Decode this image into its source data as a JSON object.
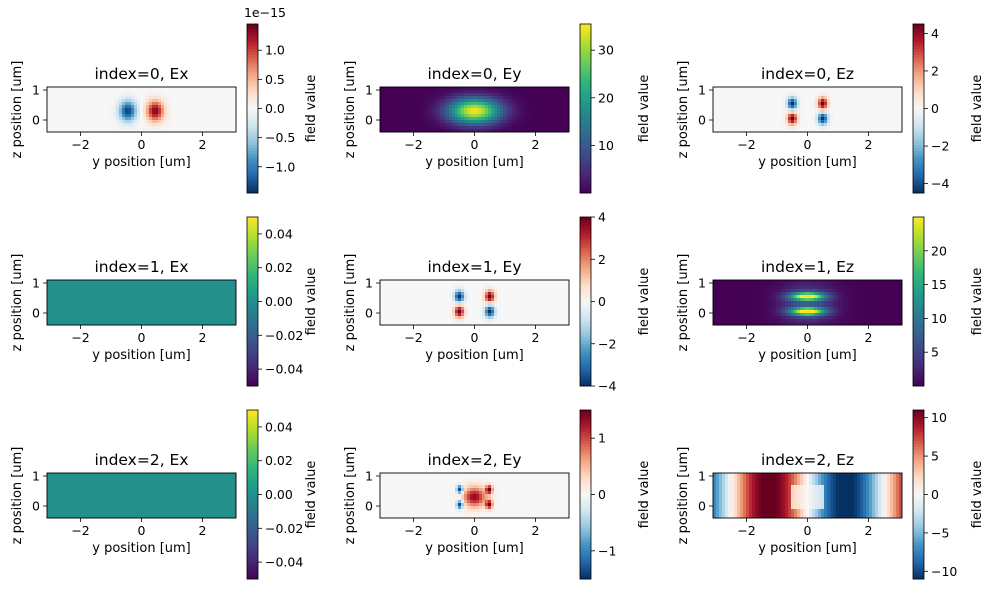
{
  "chart_data": [
    {
      "type": "heatmap",
      "title": "index=0, Ex",
      "xlabel": "y position [um]",
      "ylabel": "z position [um]",
      "xlim": [
        -3.1,
        3.1
      ],
      "ylim": [
        -0.4,
        1.1
      ],
      "xticks": [
        "−2",
        "0",
        "2"
      ],
      "yticks": [
        "0",
        "1"
      ],
      "colormap": "RdBu_r",
      "colorbar": {
        "label": "field value",
        "min": -1.45,
        "max": 1.45,
        "ticks": [
          "1.0",
          "0.5",
          "0.0",
          "−0.5",
          "−1.0"
        ],
        "tick_values": [
          1.0,
          0.5,
          0.0,
          -0.5,
          -1.0
        ],
        "offset": "1e−15"
      },
      "pattern": "ex0"
    },
    {
      "type": "heatmap",
      "title": "index=0, Ey",
      "xlabel": "y position [um]",
      "ylabel": "z position [um]",
      "xlim": [
        -3.1,
        3.1
      ],
      "ylim": [
        -0.4,
        1.1
      ],
      "xticks": [
        "−2",
        "0",
        "2"
      ],
      "yticks": [
        "0",
        "1"
      ],
      "colormap": "viridis",
      "colorbar": {
        "label": "field value",
        "min": 0,
        "max": 35.5,
        "ticks": [
          "30",
          "20",
          "10"
        ],
        "tick_values": [
          30,
          20,
          10
        ]
      },
      "pattern": "ey0"
    },
    {
      "type": "heatmap",
      "title": "index=0, Ez",
      "xlabel": "y position [um]",
      "ylabel": "z position [um]",
      "xlim": [
        -3.1,
        3.1
      ],
      "ylim": [
        -0.4,
        1.1
      ],
      "xticks": [
        "−2",
        "0",
        "2"
      ],
      "yticks": [
        "0",
        "1"
      ],
      "colormap": "RdBu_r",
      "colorbar": {
        "label": "field value",
        "min": -4.5,
        "max": 4.5,
        "ticks": [
          "4",
          "2",
          "0",
          "−2",
          "−4"
        ],
        "tick_values": [
          4,
          2,
          0,
          -2,
          -4
        ]
      },
      "pattern": "ez0"
    },
    {
      "type": "heatmap",
      "title": "index=1, Ex",
      "xlabel": "y position [um]",
      "ylabel": "z position [um]",
      "xlim": [
        -3.1,
        3.1
      ],
      "ylim": [
        -0.4,
        1.1
      ],
      "xticks": [
        "−2",
        "0",
        "2"
      ],
      "yticks": [
        "0",
        "1"
      ],
      "colormap": "viridis",
      "colorbar": {
        "label": "field value",
        "min": -0.05,
        "max": 0.05,
        "ticks": [
          "0.04",
          "0.02",
          "0.00",
          "−0.02",
          "−0.04"
        ],
        "tick_values": [
          0.04,
          0.02,
          0.0,
          -0.02,
          -0.04
        ]
      },
      "pattern": "const"
    },
    {
      "type": "heatmap",
      "title": "index=1, Ey",
      "xlabel": "y position [um]",
      "ylabel": "z position [um]",
      "xlim": [
        -3.1,
        3.1
      ],
      "ylim": [
        -0.4,
        1.1
      ],
      "xticks": [
        "−2",
        "0",
        "2"
      ],
      "yticks": [
        "0",
        "1"
      ],
      "colormap": "RdBu_r",
      "colorbar": {
        "label": "field value",
        "min": -4,
        "max": 4,
        "ticks": [
          "4",
          "2",
          "0",
          "−2",
          "−4"
        ],
        "tick_values": [
          4,
          2,
          0,
          -2,
          -4
        ]
      },
      "pattern": "ey1"
    },
    {
      "type": "heatmap",
      "title": "index=1, Ez",
      "xlabel": "y position [um]",
      "ylabel": "z position [um]",
      "xlim": [
        -3.1,
        3.1
      ],
      "ylim": [
        -0.4,
        1.1
      ],
      "xticks": [
        "−2",
        "0",
        "2"
      ],
      "yticks": [
        "0",
        "1"
      ],
      "colormap": "viridis",
      "colorbar": {
        "label": "field value",
        "min": 0,
        "max": 25,
        "ticks": [
          "20",
          "15",
          "10",
          "5"
        ],
        "tick_values": [
          20,
          15,
          10,
          5
        ]
      },
      "pattern": "ez1"
    },
    {
      "type": "heatmap",
      "title": "index=2, Ex",
      "xlabel": "y position [um]",
      "ylabel": "z position [um]",
      "xlim": [
        -3.1,
        3.1
      ],
      "ylim": [
        -0.4,
        1.1
      ],
      "xticks": [
        "−2",
        "0",
        "2"
      ],
      "yticks": [
        "0",
        "1"
      ],
      "colormap": "viridis",
      "colorbar": {
        "label": "field value",
        "min": -0.05,
        "max": 0.05,
        "ticks": [
          "0.04",
          "0.02",
          "0.00",
          "−0.02",
          "−0.04"
        ],
        "tick_values": [
          0.04,
          0.02,
          0.0,
          -0.02,
          -0.04
        ]
      },
      "pattern": "const"
    },
    {
      "type": "heatmap",
      "title": "index=2, Ey",
      "xlabel": "y position [um]",
      "ylabel": "z position [um]",
      "xlim": [
        -3.1,
        3.1
      ],
      "ylim": [
        -0.4,
        1.1
      ],
      "xticks": [
        "−2",
        "0",
        "2"
      ],
      "yticks": [
        "0",
        "1"
      ],
      "colormap": "RdBu_r",
      "colorbar": {
        "label": "field value",
        "min": -1.5,
        "max": 1.5,
        "ticks": [
          "1",
          "0",
          "−1"
        ],
        "tick_values": [
          1,
          0,
          -1
        ]
      },
      "pattern": "ey2"
    },
    {
      "type": "heatmap",
      "title": "index=2, Ez",
      "xlabel": "y position [um]",
      "ylabel": "z position [um]",
      "xlim": [
        -3.1,
        3.1
      ],
      "ylim": [
        -0.4,
        1.1
      ],
      "xticks": [
        "−2",
        "0",
        "2"
      ],
      "yticks": [
        "0",
        "1"
      ],
      "colormap": "RdBu_r",
      "colorbar": {
        "label": "field value",
        "min": -11,
        "max": 11,
        "ticks": [
          "10",
          "5",
          "0",
          "−5",
          "−10"
        ],
        "tick_values": [
          10,
          5,
          0,
          -5,
          -10
        ]
      },
      "pattern": "ez2"
    }
  ]
}
